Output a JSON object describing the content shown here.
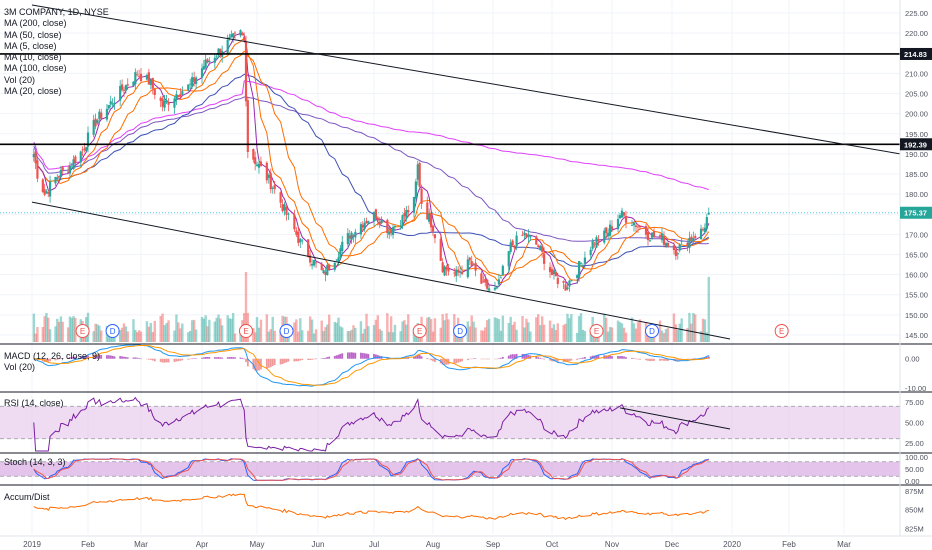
{
  "colors": {
    "up": "#26a69a",
    "down": "#ef5350",
    "ma200": "#e040fb",
    "ma50": "#3f51b5",
    "ma5": "#9c27b0",
    "ma10": "#ff6d00",
    "ma100": "#7e57c2",
    "rsi": "#7b1fa2",
    "rsi_band": "#e1bee7",
    "stoch_k": "#2962ff",
    "stoch_d": "#ef5350",
    "stoch_band": "#ce93d8",
    "adl": "#ff6d00",
    "macd": "#2196f3",
    "signal": "#ff9800",
    "hist_pos": "#ba68c8",
    "hist_neg": "#ef9a9a",
    "ref_line": "#4dd0e1",
    "event_e": "#ef5350",
    "event_d": "#2962ff"
  },
  "legend": {
    "symbol": "3M COMPANY, 1D, NYSE",
    "studies": [
      "MA (200, close)",
      "MA (50, close)",
      "MA (5, close)",
      "MA (10, close)",
      "MA (100, close)",
      "Vol (20)",
      "MA (20, close)"
    ]
  },
  "panes": {
    "macd_label": "MACD (12, 26, close, 9)",
    "vol_label": "Vol (20)",
    "rsi_label": "RSI (14, close)",
    "stoch_label": "Stoch (14, 3, 3)",
    "adl_label": "Accum/Dist"
  },
  "chart_data": [
    {
      "type": "candlestick",
      "title": "3M COMPANY, 1D, NYSE",
      "x_axis": {
        "ticks": [
          "2019",
          "Feb",
          "Mar",
          "Apr",
          "May",
          "Jun",
          "Jul",
          "Aug",
          "Sep",
          "Oct",
          "Nov",
          "Dec",
          "2020",
          "Feb",
          "Mar"
        ],
        "data_start": "2019-01-02",
        "data_end": "2019-12-20"
      },
      "y_axis": {
        "ticks": [
          "225.00",
          "220.00",
          "215.00",
          "210.00",
          "205.00",
          "200.00",
          "195.00",
          "190.00",
          "185.00",
          "180.00",
          "175.00",
          "170.00",
          "165.00",
          "160.00",
          "155.00",
          "150.00",
          "145.00"
        ],
        "range": [
          143,
          227
        ],
        "side": "right"
      },
      "price_path": [
        {
          "date": "2019-01-02",
          "close": 190
        },
        {
          "date": "2019-01-04",
          "close": 185
        },
        {
          "date": "2019-01-08",
          "close": 180
        },
        {
          "date": "2019-01-14",
          "close": 184
        },
        {
          "date": "2019-01-22",
          "close": 187
        },
        {
          "date": "2019-01-29",
          "close": 191
        },
        {
          "date": "2019-02-05",
          "close": 198
        },
        {
          "date": "2019-02-12",
          "close": 202
        },
        {
          "date": "2019-02-19",
          "close": 206
        },
        {
          "date": "2019-02-27",
          "close": 210
        },
        {
          "date": "2019-03-05",
          "close": 208
        },
        {
          "date": "2019-03-12",
          "close": 202
        },
        {
          "date": "2019-03-19",
          "close": 205
        },
        {
          "date": "2019-03-26",
          "close": 207
        },
        {
          "date": "2019-04-02",
          "close": 212
        },
        {
          "date": "2019-04-09",
          "close": 215
        },
        {
          "date": "2019-04-16",
          "close": 218
        },
        {
          "date": "2019-04-22",
          "close": 220
        },
        {
          "date": "2019-04-24",
          "close": 218
        },
        {
          "date": "2019-04-26",
          "close": 191
        },
        {
          "date": "2019-05-02",
          "close": 187
        },
        {
          "date": "2019-05-09",
          "close": 182
        },
        {
          "date": "2019-05-16",
          "close": 175
        },
        {
          "date": "2019-05-23",
          "close": 168
        },
        {
          "date": "2019-05-30",
          "close": 163
        },
        {
          "date": "2019-06-04",
          "close": 160
        },
        {
          "date": "2019-06-11",
          "close": 165
        },
        {
          "date": "2019-06-18",
          "close": 170
        },
        {
          "date": "2019-06-25",
          "close": 173
        },
        {
          "date": "2019-07-02",
          "close": 175
        },
        {
          "date": "2019-07-09",
          "close": 171
        },
        {
          "date": "2019-07-16",
          "close": 174
        },
        {
          "date": "2019-07-22",
          "close": 178
        },
        {
          "date": "2019-07-24",
          "close": 187
        },
        {
          "date": "2019-07-26",
          "close": 178
        },
        {
          "date": "2019-08-01",
          "close": 172
        },
        {
          "date": "2019-08-06",
          "close": 162
        },
        {
          "date": "2019-08-13",
          "close": 160
        },
        {
          "date": "2019-08-20",
          "close": 163
        },
        {
          "date": "2019-08-27",
          "close": 157
        },
        {
          "date": "2019-09-03",
          "close": 156
        },
        {
          "date": "2019-09-10",
          "close": 167
        },
        {
          "date": "2019-09-17",
          "close": 170
        },
        {
          "date": "2019-09-24",
          "close": 167
        },
        {
          "date": "2019-10-01",
          "close": 160
        },
        {
          "date": "2019-10-08",
          "close": 157
        },
        {
          "date": "2019-10-15",
          "close": 162
        },
        {
          "date": "2019-10-22",
          "close": 168
        },
        {
          "date": "2019-10-29",
          "close": 170
        },
        {
          "date": "2019-11-05",
          "close": 175
        },
        {
          "date": "2019-11-12",
          "close": 173
        },
        {
          "date": "2019-11-19",
          "close": 170
        },
        {
          "date": "2019-11-26",
          "close": 169
        },
        {
          "date": "2019-12-03",
          "close": 166
        },
        {
          "date": "2019-12-10",
          "close": 169
        },
        {
          "date": "2019-12-17",
          "close": 171
        },
        {
          "date": "2019-12-20",
          "close": 175.37
        }
      ],
      "price_labels": [
        {
          "value": 214.83,
          "label": "214.83"
        },
        {
          "value": 192.39,
          "label": "192.39"
        },
        {
          "value": 175.37,
          "label": "175.37"
        }
      ],
      "horizontal_lines": [
        214.83,
        192.39
      ],
      "reference_line": 175.37,
      "trend_lines": [
        {
          "start": {
            "date": "2018-12-31",
            "value": 227
          },
          "end": {
            "date": "2020-03-31",
            "value": 190
          }
        },
        {
          "start": {
            "date": "2018-12-31",
            "value": 178
          },
          "end": {
            "date": "2019-12-31",
            "value": 144
          }
        }
      ],
      "events": [
        {
          "date": "2019-01-29",
          "label": "E"
        },
        {
          "date": "2019-02-14",
          "label": "D"
        },
        {
          "date": "2019-04-25",
          "label": "E"
        },
        {
          "date": "2019-05-16",
          "label": "D"
        },
        {
          "date": "2019-07-25",
          "label": "E"
        },
        {
          "date": "2019-08-15",
          "label": "D"
        },
        {
          "date": "2019-10-24",
          "label": "E"
        },
        {
          "date": "2019-11-21",
          "label": "D"
        },
        {
          "date": "2020-01-28",
          "label": "E"
        }
      ],
      "volume_spikes": [
        {
          "date": "2019-04-25",
          "relative": 1.0
        },
        {
          "date": "2019-12-20",
          "relative": 0.93
        }
      ]
    },
    {
      "type": "line",
      "name": "MACD (12, 26, close, 9)",
      "y_ticks": [
        "0.00",
        "-10.00"
      ],
      "ylim": [
        -11,
        4
      ]
    },
    {
      "type": "line",
      "name": "RSI (14, close)",
      "y_ticks": [
        "75.00",
        "50.00",
        "25.00"
      ],
      "ylim": [
        15,
        85
      ],
      "bands": [
        30,
        70
      ],
      "trend_line": {
        "start": {
          "date": "2019-11-05",
          "value": 68
        },
        "end": {
          "date": "2019-12-31",
          "value": 42
        }
      }
    },
    {
      "type": "line",
      "name": "Stoch (14, 3, 3)",
      "y_ticks": [
        "100.00",
        "50.00",
        "0.00"
      ],
      "ylim": [
        -8,
        108
      ],
      "bands": [
        20,
        80
      ]
    },
    {
      "type": "line",
      "name": "Accum/Dist",
      "y_ticks": [
        "875M",
        "850M",
        "825M"
      ],
      "ylim": [
        818,
        880
      ]
    }
  ]
}
